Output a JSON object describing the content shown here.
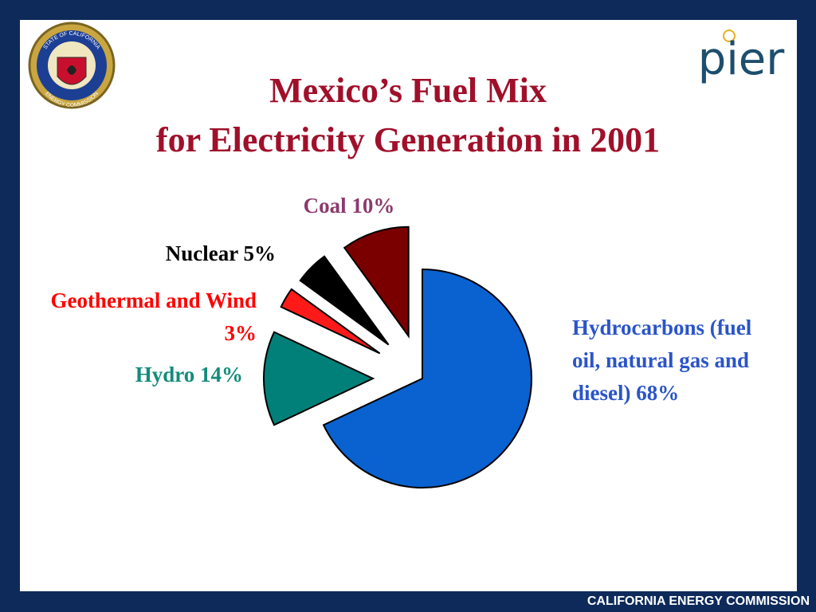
{
  "chart_data": {
    "type": "pie",
    "title": "Mexico’s Fuel Mix",
    "subtitle": "for Electricity Generation in 2001",
    "categories": [
      "Hydrocarbons (fuel oil, natural gas and diesel)",
      "Hydro",
      "Geothermal and Wind",
      "Nuclear",
      "Coal"
    ],
    "values": [
      68,
      14,
      3,
      5,
      10
    ],
    "value_labels": [
      "68%",
      "14%",
      "3%",
      "5%",
      "10%"
    ],
    "colors": [
      "#0a62d0",
      "#008078",
      "#ff1a1a",
      "#000000",
      "#7a0000"
    ],
    "label_colors": [
      "#2a55c8",
      "#138c7a",
      "#ff0000",
      "#000000",
      "#8b3a6e"
    ]
  },
  "logos": {
    "seal_text": [
      "STATE OF CALIFORNIA",
      "ENERGY COMMISSION"
    ],
    "brand": "pier"
  },
  "footer": "CALIFORNIA ENERGY COMMISSION"
}
